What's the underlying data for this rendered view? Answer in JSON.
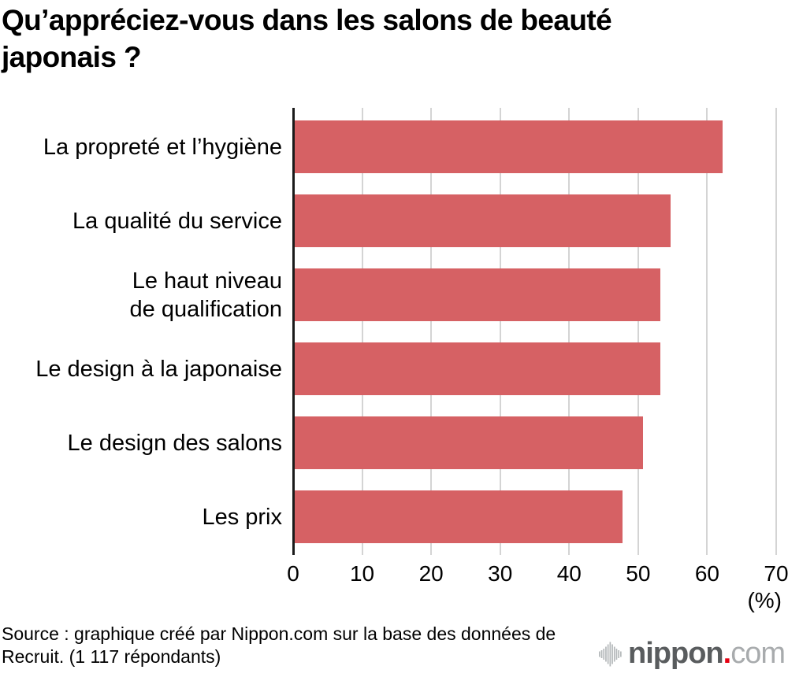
{
  "title": "Qu’appréciez-vous dans les salons de beauté japonais ?",
  "chart_data": {
    "type": "bar",
    "orientation": "horizontal",
    "title": "Qu’appréciez-vous dans les salons de beauté japonais ?",
    "categories": [
      "La propreté et l’hygiène",
      "La qualité du service",
      "Le haut niveau\nde qualification",
      "Le design à la japonaise",
      "Le design des salons",
      "Les prix"
    ],
    "values": [
      62,
      54.5,
      53,
      53,
      50.5,
      47.5
    ],
    "xlim": [
      0,
      70
    ],
    "xticks": [
      0,
      10,
      20,
      30,
      40,
      50,
      60,
      70
    ],
    "xlabel": "(%)",
    "grid": true,
    "legend": false,
    "bar_color": "#d66164",
    "gridline_color": "#d4d4d4",
    "axis_color": "#1a1a1a"
  },
  "source": {
    "line1": "Source : graphique créé par Nippon.com sur la base des données de",
    "line2": "Recruit. (1 117 répondants)"
  },
  "logo": {
    "icon": "soundwave-icon",
    "name": "nippon",
    "dot": ".",
    "tld": "com",
    "name_color": "#595c5e",
    "dot_color": "#e60012",
    "tld_color": "#a8abad",
    "icon_color": "#b4b8ba"
  }
}
